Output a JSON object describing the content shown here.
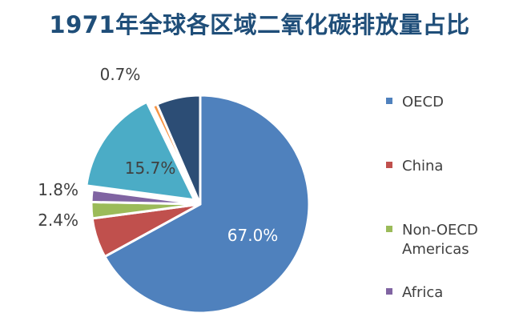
{
  "chart_data": {
    "type": "pie",
    "title": "1971年全球各区域二氧化碳排放量占比",
    "slices": [
      {
        "name": "OECD",
        "value": 67.0,
        "label": "67.0%",
        "color": "#4f81bd"
      },
      {
        "name": "China",
        "value": 5.9,
        "label": "",
        "color": "#c0504d"
      },
      {
        "name": "Non-OECD Americas",
        "value": 2.4,
        "label": "2.4%",
        "color": "#9bbb59"
      },
      {
        "name": "Africa",
        "value": 1.8,
        "label": "1.8%",
        "color": "#8064a2"
      },
      {
        "name": "",
        "value": 15.7,
        "label": "15.7%",
        "color": "#4bacc6"
      },
      {
        "name": "",
        "value": 0.7,
        "label": "0.7%",
        "color": "#f79646"
      },
      {
        "name": "",
        "value": 6.5,
        "label": "",
        "color": "#2c4d75"
      }
    ],
    "legend": [
      "OECD",
      "China",
      "Non-OECD Americas",
      "Africa"
    ],
    "legend_display": [
      "OECD",
      "China",
      "Non-OECD\nAmericas",
      "Africa"
    ],
    "legend_placement": "right"
  }
}
